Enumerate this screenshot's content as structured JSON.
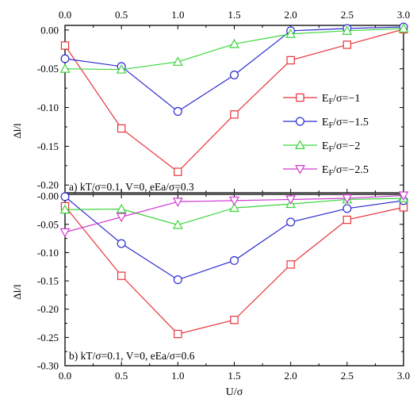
{
  "chart_data": [
    {
      "type": "line",
      "panel_label": "a) kT/σ=0.1,  V=0,  eEa/σ=0.3",
      "ylabel": "Δl/l",
      "xlabel": "",
      "x": [
        0.0,
        0.5,
        1.0,
        1.5,
        2.0,
        2.5,
        3.0
      ],
      "xticklabels": [
        "0.0",
        "0.5",
        "1.0",
        "1.5",
        "2.0",
        "2.5",
        "3.0"
      ],
      "xlim": [
        0,
        3
      ],
      "ylim": [
        -0.21,
        0.006
      ],
      "yticks": [
        0.0,
        -0.05,
        -0.1,
        -0.15,
        -0.2
      ],
      "yticklabels": [
        "0.00",
        "-0.05",
        "-0.10",
        "-0.15",
        "-0.20"
      ],
      "series": [
        {
          "name": "E_F/σ=−1",
          "marker": "square",
          "color": "#e8333a",
          "values": [
            -0.02,
            -0.127,
            -0.183,
            -0.109,
            -0.039,
            -0.019,
            0.001
          ]
        },
        {
          "name": "E_F/σ=−1.5",
          "marker": "circle",
          "color": "#2b2bd1",
          "values": [
            -0.037,
            -0.047,
            -0.105,
            -0.058,
            -0.001,
            0.002,
            0.004
          ]
        },
        {
          "name": "E_F/σ=−2",
          "marker": "triangle-up",
          "color": "#3cd63c",
          "values": [
            -0.05,
            -0.051,
            -0.041,
            -0.018,
            -0.005,
            -0.001,
            0.002
          ]
        }
      ],
      "legend": {
        "placement": "right",
        "entries": [
          {
            "prefix": "E",
            "sub": "F",
            "suffix": "/σ=−1",
            "marker": "square",
            "color": "#e8333a"
          },
          {
            "prefix": "E",
            "sub": "F",
            "suffix": "/σ=−1.5",
            "marker": "circle",
            "color": "#2b2bd1"
          },
          {
            "prefix": "E",
            "sub": "F",
            "suffix": "/σ=−2",
            "marker": "triangle-up",
            "color": "#3cd63c"
          },
          {
            "prefix": "E",
            "sub": "F",
            "suffix": "/σ=−2.5",
            "marker": "triangle-down",
            "color": "#d13cd1"
          }
        ]
      }
    },
    {
      "type": "line",
      "panel_label": "b) kT/σ=0.1,  V=0,  eEa/σ=0.6",
      "ylabel": "Δl/l",
      "xlabel": "U/σ",
      "x": [
        0.0,
        0.5,
        1.0,
        1.5,
        2.0,
        2.5,
        3.0
      ],
      "xticklabels": [
        "0.0",
        "0.5",
        "1.0",
        "1.5",
        "2.0",
        "2.5",
        "3.0"
      ],
      "xlim": [
        0,
        3
      ],
      "ylim": [
        -0.3,
        0.003
      ],
      "yticks": [
        0.0,
        -0.05,
        -0.1,
        -0.15,
        -0.2,
        -0.25,
        -0.3
      ],
      "yticklabels": [
        "-0.00",
        "-0.05",
        "-0.10",
        "-0.15",
        "-0.20",
        "-0.25",
        "-0.30"
      ],
      "series": [
        {
          "name": "E_F/σ=−1",
          "marker": "square",
          "color": "#e8333a",
          "values": [
            -0.018,
            -0.141,
            -0.244,
            -0.219,
            -0.121,
            -0.042,
            -0.02
          ]
        },
        {
          "name": "E_F/σ=−1.5",
          "marker": "circle",
          "color": "#2b2bd1",
          "values": [
            -0.001,
            -0.084,
            -0.148,
            -0.114,
            -0.046,
            -0.022,
            -0.008
          ]
        },
        {
          "name": "E_F/σ=−2",
          "marker": "triangle-up",
          "color": "#3cd63c",
          "values": [
            -0.024,
            -0.023,
            -0.051,
            -0.021,
            -0.014,
            -0.006,
            -0.004
          ]
        },
        {
          "name": "E_F/σ=−2.5",
          "marker": "triangle-down",
          "color": "#d13cd1",
          "values": [
            -0.064,
            -0.037,
            -0.01,
            -0.008,
            -0.006,
            -0.004,
            0.001
          ]
        }
      ]
    }
  ]
}
